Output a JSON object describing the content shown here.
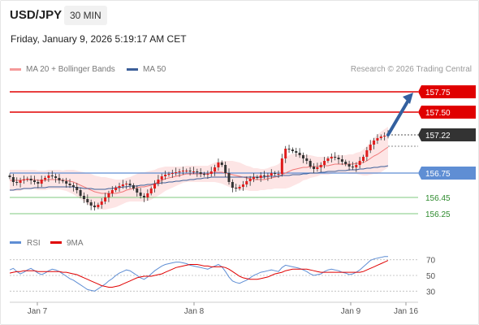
{
  "header": {
    "symbol": "USD/JPY",
    "interval": "30 MIN",
    "datetime": "Friday, January 9, 2026 5:19:17 AM CET"
  },
  "legend": {
    "ma_label": "MA 20 + Bollinger Bands",
    "ma50_label": "MA 50",
    "credit": "Research © 2026 Trading Central"
  },
  "colors": {
    "bollinger_fill": "#fde0e0",
    "ma20": "#f07878",
    "ma50": "#3c5f99",
    "resistance": "#e00000",
    "pivot": "#5f8ed4",
    "support": "#7fc97f",
    "arrow": "#33609f",
    "candle_up": "#e01b1b",
    "candle_down": "#333333",
    "rsi_line": "#5f8ed4",
    "rsi_ma": "#e00000"
  },
  "chart_data": [
    {
      "type": "candlestick",
      "x_ticks": [
        "Jan 7",
        "Jan 8",
        "Jan 9",
        "Jan 16"
      ],
      "ylim": [
        156.1,
        157.9
      ],
      "levels": [
        {
          "value": 157.75,
          "label": "157.75",
          "kind": "resistance"
        },
        {
          "value": 157.5,
          "label": "157.50",
          "kind": "resistance"
        },
        {
          "value": 157.22,
          "label": "157.22",
          "kind": "current"
        },
        {
          "value": 156.75,
          "label": "156.75",
          "kind": "pivot"
        },
        {
          "value": 156.45,
          "label": "156.45",
          "kind": "support"
        },
        {
          "value": 156.25,
          "label": "156.25",
          "kind": "support"
        }
      ],
      "arrow": {
        "from": 157.22,
        "to": 157.75
      },
      "close": [
        156.7,
        156.64,
        156.63,
        156.66,
        156.67,
        156.68,
        156.66,
        156.64,
        156.62,
        156.67,
        156.69,
        156.72,
        156.71,
        156.69,
        156.66,
        156.65,
        156.62,
        156.6,
        156.58,
        156.54,
        156.47,
        156.43,
        156.39,
        156.35,
        156.33,
        156.36,
        156.4,
        156.45,
        156.5,
        156.54,
        156.57,
        156.59,
        156.61,
        156.62,
        156.6,
        156.56,
        156.51,
        156.47,
        156.45,
        156.5,
        156.56,
        156.62,
        156.67,
        156.71,
        156.73,
        156.74,
        156.75,
        156.76,
        156.77,
        156.78,
        156.78,
        156.77,
        156.77,
        156.76,
        156.74,
        156.73,
        156.74,
        156.77,
        156.82,
        156.88,
        156.85,
        156.75,
        156.64,
        156.57,
        156.56,
        156.58,
        156.61,
        156.65,
        156.68,
        156.7,
        156.69,
        156.72,
        156.71,
        156.72,
        156.75,
        156.74,
        156.74,
        156.93,
        157.05,
        157.04,
        157.02,
        157.0,
        156.97,
        156.93,
        156.9,
        156.83,
        156.8,
        156.82,
        156.85,
        156.9,
        156.93,
        156.95,
        156.94,
        156.92,
        156.89,
        156.86,
        156.83,
        156.82,
        156.85,
        156.9,
        156.95,
        157.03,
        157.1,
        157.15,
        157.18,
        157.2,
        157.21,
        157.22
      ],
      "ma20": [
        156.66,
        156.66,
        156.66,
        156.66,
        156.67,
        156.67,
        156.67,
        156.67,
        156.66,
        156.66,
        156.66,
        156.67,
        156.67,
        156.67,
        156.67,
        156.66,
        156.66,
        156.65,
        156.64,
        156.62,
        156.6,
        156.58,
        156.56,
        156.54,
        156.52,
        156.51,
        156.5,
        156.5,
        156.5,
        156.5,
        156.5,
        156.51,
        156.52,
        156.54,
        156.55,
        156.56,
        156.57,
        156.58,
        156.58,
        156.59,
        156.6,
        156.62,
        156.64,
        156.66,
        156.68,
        156.69,
        156.7,
        156.71,
        156.72,
        156.73,
        156.74,
        156.74,
        156.74,
        156.74,
        156.74,
        156.74,
        156.74,
        156.75,
        156.76,
        156.76,
        156.76,
        156.75,
        156.74,
        156.73,
        156.72,
        156.71,
        156.7,
        156.69,
        156.68,
        156.67,
        156.67,
        156.67,
        156.67,
        156.68,
        156.69,
        156.7,
        156.71,
        156.73,
        156.75,
        156.77,
        156.79,
        156.8,
        156.81,
        156.82,
        156.82,
        156.83,
        156.83,
        156.83,
        156.84,
        156.84,
        156.84,
        156.85,
        156.86,
        156.86,
        156.86,
        156.86,
        156.86,
        156.86,
        156.87,
        156.87,
        156.88,
        156.9,
        156.93,
        156.96,
        156.98,
        157.01,
        157.04,
        157.07
      ],
      "ma50": [
        156.54,
        156.54,
        156.55,
        156.55,
        156.56,
        156.56,
        156.56,
        156.57,
        156.57,
        156.57,
        156.57,
        156.58,
        156.58,
        156.58,
        156.58,
        156.58,
        156.58,
        156.58,
        156.58,
        156.57,
        156.57,
        156.56,
        156.56,
        156.56,
        156.55,
        156.55,
        156.55,
        156.55,
        156.56,
        156.56,
        156.57,
        156.57,
        156.58,
        156.58,
        156.59,
        156.59,
        156.59,
        156.6,
        156.6,
        156.61,
        156.61,
        156.62,
        156.62,
        156.63,
        156.63,
        156.64,
        156.64,
        156.65,
        156.65,
        156.66,
        156.66,
        156.67,
        156.67,
        156.68,
        156.68,
        156.69,
        156.69,
        156.7,
        156.7,
        156.7,
        156.7,
        156.7,
        156.7,
        156.7,
        156.7,
        156.7,
        156.7,
        156.7,
        156.7,
        156.7,
        156.7,
        156.7,
        156.7,
        156.71,
        156.71,
        156.71,
        156.71,
        156.72,
        156.72,
        156.72,
        156.73,
        156.73,
        156.73,
        156.74,
        156.74,
        156.75,
        156.75,
        156.75,
        156.76,
        156.76,
        156.77,
        156.77,
        156.77,
        156.78,
        156.78,
        156.78,
        156.79,
        156.79,
        156.79,
        156.8,
        156.8,
        156.81,
        156.81,
        156.82,
        156.82,
        156.83,
        156.83,
        156.84
      ],
      "band_width": [
        0.13,
        0.13,
        0.13,
        0.13,
        0.12,
        0.12,
        0.12,
        0.12,
        0.12,
        0.12,
        0.12,
        0.12,
        0.12,
        0.12,
        0.12,
        0.12,
        0.13,
        0.14,
        0.15,
        0.16,
        0.17,
        0.18,
        0.19,
        0.2,
        0.2,
        0.2,
        0.2,
        0.2,
        0.19,
        0.18,
        0.17,
        0.16,
        0.15,
        0.15,
        0.15,
        0.16,
        0.17,
        0.18,
        0.18,
        0.18,
        0.18,
        0.17,
        0.17,
        0.16,
        0.15,
        0.14,
        0.13,
        0.12,
        0.11,
        0.1,
        0.1,
        0.1,
        0.1,
        0.1,
        0.1,
        0.1,
        0.1,
        0.11,
        0.12,
        0.13,
        0.14,
        0.15,
        0.16,
        0.17,
        0.17,
        0.17,
        0.16,
        0.15,
        0.15,
        0.14,
        0.14,
        0.13,
        0.13,
        0.13,
        0.14,
        0.14,
        0.15,
        0.17,
        0.19,
        0.2,
        0.2,
        0.19,
        0.18,
        0.16,
        0.15,
        0.14,
        0.13,
        0.12,
        0.11,
        0.11,
        0.11,
        0.11,
        0.11,
        0.11,
        0.11,
        0.11,
        0.12,
        0.12,
        0.13,
        0.14,
        0.16,
        0.18,
        0.2,
        0.22,
        0.24,
        0.25,
        0.25,
        0.25
      ]
    },
    {
      "type": "line",
      "series": [
        {
          "name": "RSI"
        },
        {
          "name": "9MA"
        }
      ],
      "ylim": [
        20,
        80
      ],
      "y_ticks": [
        "70",
        "50",
        "30"
      ],
      "rsi": [
        57,
        59,
        55,
        52,
        54,
        57,
        59,
        56,
        53,
        51,
        53,
        56,
        58,
        57,
        55,
        52,
        49,
        46,
        44,
        41,
        38,
        35,
        32,
        31,
        30,
        33,
        36,
        39,
        43,
        46,
        50,
        53,
        55,
        57,
        56,
        53,
        50,
        47,
        45,
        48,
        52,
        56,
        59,
        62,
        64,
        65,
        66,
        67,
        67,
        66,
        65,
        63,
        62,
        61,
        60,
        59,
        58,
        60,
        62,
        64,
        61,
        55,
        48,
        43,
        41,
        40,
        42,
        44,
        47,
        50,
        52,
        54,
        55,
        56,
        57,
        56,
        55,
        60,
        63,
        62,
        61,
        60,
        59,
        57,
        55,
        52,
        50,
        51,
        52,
        55,
        57,
        58,
        57,
        56,
        54,
        53,
        51,
        52,
        54,
        57,
        61,
        65,
        69,
        71,
        72,
        73,
        74,
        74
      ],
      "rsi_ma": [
        53,
        54,
        55,
        55,
        56,
        56,
        56,
        56,
        55,
        55,
        55,
        55,
        55,
        55,
        55,
        54,
        54,
        53,
        52,
        51,
        49,
        47,
        45,
        43,
        41,
        39,
        37,
        36,
        35,
        35,
        36,
        37,
        39,
        41,
        43,
        45,
        47,
        48,
        49,
        49,
        49,
        50,
        51,
        52,
        54,
        56,
        58,
        60,
        61,
        62,
        63,
        64,
        64,
        64,
        63,
        62,
        62,
        61,
        61,
        61,
        61,
        60,
        58,
        55,
        52,
        49,
        47,
        46,
        45,
        45,
        45,
        46,
        47,
        48,
        50,
        52,
        53,
        54,
        56,
        57,
        58,
        58,
        58,
        58,
        58,
        57,
        56,
        55,
        54,
        54,
        54,
        54,
        54,
        54,
        54,
        54,
        54,
        54,
        54,
        54,
        55,
        57,
        59,
        61,
        63,
        65,
        67,
        69
      ]
    }
  ]
}
